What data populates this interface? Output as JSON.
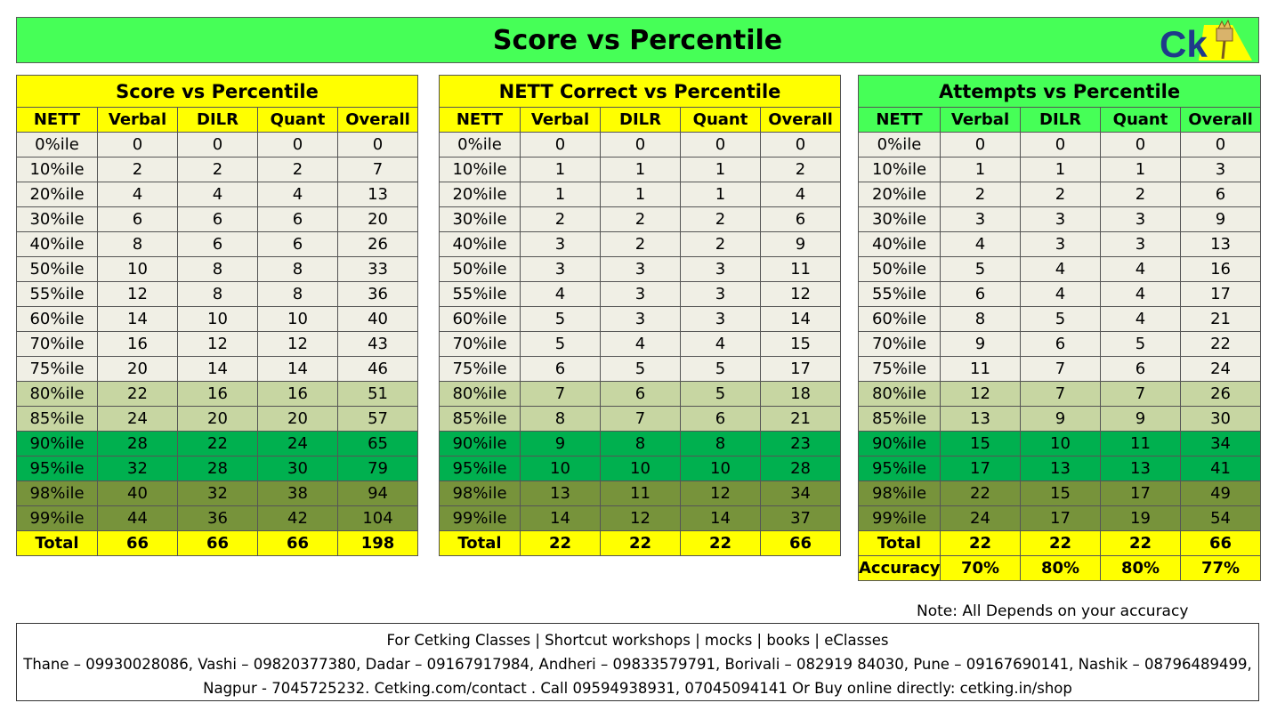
{
  "banner": {
    "title": "Score vs Percentile",
    "logo_text": "Ck"
  },
  "columns": [
    "NETT",
    "Verbal",
    "DILR",
    "Quant",
    "Overall"
  ],
  "row_labels": [
    "0%ile",
    "10%ile",
    "20%ile",
    "30%ile",
    "40%ile",
    "50%ile",
    "55%ile",
    "60%ile",
    "70%ile",
    "75%ile",
    "80%ile",
    "85%ile",
    "90%ile",
    "95%ile",
    "98%ile",
    "99%ile"
  ],
  "colors": {
    "banner": "#46ff57",
    "yellow_header": "#ffff00",
    "green_header": "#46ff57",
    "base_rows": "#f0efe5",
    "band_80_85": "#c7d6a2",
    "band_90_95": "#00b04f",
    "band_98_99": "#77933b"
  },
  "tables": [
    {
      "title": "Score vs Percentile",
      "rows": [
        [
          "0",
          "0",
          "0",
          "0"
        ],
        [
          "2",
          "2",
          "2",
          "7"
        ],
        [
          "4",
          "4",
          "4",
          "13"
        ],
        [
          "6",
          "6",
          "6",
          "20"
        ],
        [
          "8",
          "6",
          "6",
          "26"
        ],
        [
          "10",
          "8",
          "8",
          "33"
        ],
        [
          "12",
          "8",
          "8",
          "36"
        ],
        [
          "14",
          "10",
          "10",
          "40"
        ],
        [
          "16",
          "12",
          "12",
          "43"
        ],
        [
          "20",
          "14",
          "14",
          "46"
        ],
        [
          "22",
          "16",
          "16",
          "51"
        ],
        [
          "24",
          "20",
          "20",
          "57"
        ],
        [
          "28",
          "22",
          "24",
          "65"
        ],
        [
          "32",
          "28",
          "30",
          "79"
        ],
        [
          "40",
          "32",
          "38",
          "94"
        ],
        [
          "44",
          "36",
          "42",
          "104"
        ]
      ],
      "total": [
        "Total",
        "66",
        "66",
        "66",
        "198"
      ]
    },
    {
      "title": "NETT Correct vs Percentile",
      "rows": [
        [
          "0",
          "0",
          "0",
          "0"
        ],
        [
          "1",
          "1",
          "1",
          "2"
        ],
        [
          "1",
          "1",
          "1",
          "4"
        ],
        [
          "2",
          "2",
          "2",
          "6"
        ],
        [
          "3",
          "2",
          "2",
          "9"
        ],
        [
          "3",
          "3",
          "3",
          "11"
        ],
        [
          "4",
          "3",
          "3",
          "12"
        ],
        [
          "5",
          "3",
          "3",
          "14"
        ],
        [
          "5",
          "4",
          "4",
          "15"
        ],
        [
          "6",
          "5",
          "5",
          "17"
        ],
        [
          "7",
          "6",
          "5",
          "18"
        ],
        [
          "8",
          "7",
          "6",
          "21"
        ],
        [
          "9",
          "8",
          "8",
          "23"
        ],
        [
          "10",
          "10",
          "10",
          "28"
        ],
        [
          "13",
          "11",
          "12",
          "34"
        ],
        [
          "14",
          "12",
          "14",
          "37"
        ]
      ],
      "total": [
        "Total",
        "22",
        "22",
        "22",
        "66"
      ]
    },
    {
      "title": "Attempts vs Percentile",
      "rows": [
        [
          "0",
          "0",
          "0",
          "0"
        ],
        [
          "1",
          "1",
          "1",
          "3"
        ],
        [
          "2",
          "2",
          "2",
          "6"
        ],
        [
          "3",
          "3",
          "3",
          "9"
        ],
        [
          "4",
          "3",
          "3",
          "13"
        ],
        [
          "5",
          "4",
          "4",
          "16"
        ],
        [
          "6",
          "4",
          "4",
          "17"
        ],
        [
          "8",
          "5",
          "4",
          "21"
        ],
        [
          "9",
          "6",
          "5",
          "22"
        ],
        [
          "11",
          "7",
          "6",
          "24"
        ],
        [
          "12",
          "7",
          "7",
          "26"
        ],
        [
          "13",
          "9",
          "9",
          "30"
        ],
        [
          "15",
          "10",
          "11",
          "34"
        ],
        [
          "17",
          "13",
          "13",
          "41"
        ],
        [
          "22",
          "15",
          "17",
          "49"
        ],
        [
          "24",
          "17",
          "19",
          "54"
        ]
      ],
      "total": [
        "Total",
        "22",
        "22",
        "22",
        "66"
      ],
      "accuracy": [
        "Accuracy",
        "70%",
        "80%",
        "80%",
        "77%"
      ]
    }
  ],
  "note": "Note: All Depends on your accuracy",
  "footer": {
    "line1": "For Cetking Classes | Shortcut workshops | mocks | books | eClasses",
    "line2": "Thane – 09930028086, Vashi – 09820377380, Dadar – 09167917984, Andheri – 09833579791, Borivali – 082919 84030, Pune – 09167690141, Nashik – 08796489499,",
    "line3": "Nagpur - 7045725232.  Cetking.com/contact . Call 09594938931, 07045094141 Or Buy online directly: cetking.in/shop"
  }
}
